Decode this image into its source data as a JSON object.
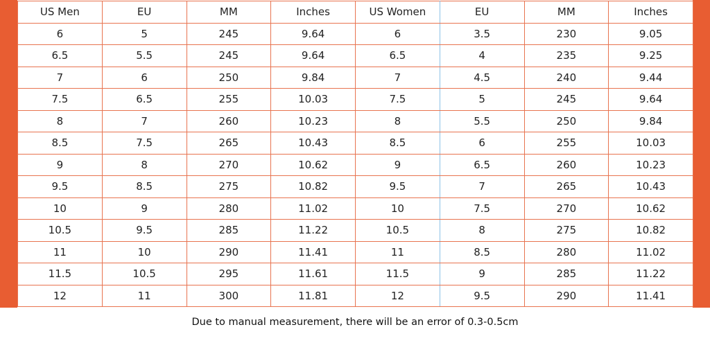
{
  "table": {
    "header": [
      "US Men",
      "EU",
      "MM",
      "Inches",
      "US Women",
      "EU",
      "MM",
      "Inches"
    ],
    "rows": [
      [
        "6",
        "5",
        "245",
        "9.64",
        "6",
        "3.5",
        "230",
        "9.05"
      ],
      [
        "6.5",
        "5.5",
        "245",
        "9.64",
        "6.5",
        "4",
        "235",
        "9.25"
      ],
      [
        "7",
        "6",
        "250",
        "9.84",
        "7",
        "4.5",
        "240",
        "9.44"
      ],
      [
        "7.5",
        "6.5",
        "255",
        "10.03",
        "7.5",
        "5",
        "245",
        "9.64"
      ],
      [
        "8",
        "7",
        "260",
        "10.23",
        "8",
        "5.5",
        "250",
        "9.84"
      ],
      [
        "8.5",
        "7.5",
        "265",
        "10.43",
        "8.5",
        "6",
        "255",
        "10.03"
      ],
      [
        "9",
        "8",
        "270",
        "10.62",
        "9",
        "6.5",
        "260",
        "10.23"
      ],
      [
        "9.5",
        "8.5",
        "275",
        "10.82",
        "9.5",
        "7",
        "265",
        "10.43"
      ],
      [
        "10",
        "9",
        "280",
        "11.02",
        "10",
        "7.5",
        "270",
        "10.62"
      ],
      [
        "10.5",
        "9.5",
        "285",
        "11.22",
        "10.5",
        "8",
        "275",
        "10.82"
      ],
      [
        "11",
        "10",
        "290",
        "11.41",
        "11",
        "8.5",
        "280",
        "11.02"
      ],
      [
        "11.5",
        "10.5",
        "295",
        "11.61",
        "11.5",
        "9",
        "285",
        "11.22"
      ],
      [
        "12",
        "11",
        "300",
        "11.81",
        "12",
        "9.5",
        "290",
        "11.41"
      ]
    ]
  },
  "footnote": "Due to manual measurement, there will be an error of 0.3-0.5cm"
}
